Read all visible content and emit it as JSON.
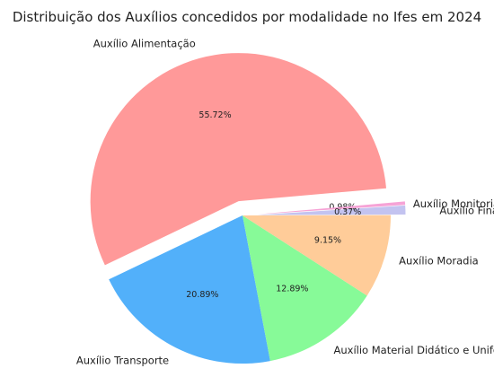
{
  "chart_data": {
    "type": "pie",
    "title": "Distribuição dos Auxílios concedidos por modalidade no Ifes em 2024",
    "slices": [
      {
        "label": "Auxílio Alimentação",
        "value": 55.72,
        "pct_label": "55.72%",
        "color": "#ff9999",
        "exploded": true
      },
      {
        "label": "Auxílio Transporte",
        "value": 20.89,
        "pct_label": "20.89%",
        "color": "#52b0fa",
        "exploded": false
      },
      {
        "label": "Auxílio Material Didático e Uniforme",
        "value": 12.89,
        "pct_label": "12.89%",
        "color": "#87fa98",
        "exploded": false
      },
      {
        "label": "Auxílio Moradia",
        "value": 9.15,
        "pct_label": "9.15%",
        "color": "#ffcc99",
        "exploded": false
      },
      {
        "label": "Auxílio Monitoria",
        "value": 0.98,
        "pct_label": "0.98%",
        "color": "#c3c3f0",
        "exploded": true
      },
      {
        "label": "Auxílio Financeiro",
        "value": 0.37,
        "pct_label": "0.37%",
        "color": "#f6a3d6",
        "exploded": true
      }
    ],
    "legend": "none"
  }
}
